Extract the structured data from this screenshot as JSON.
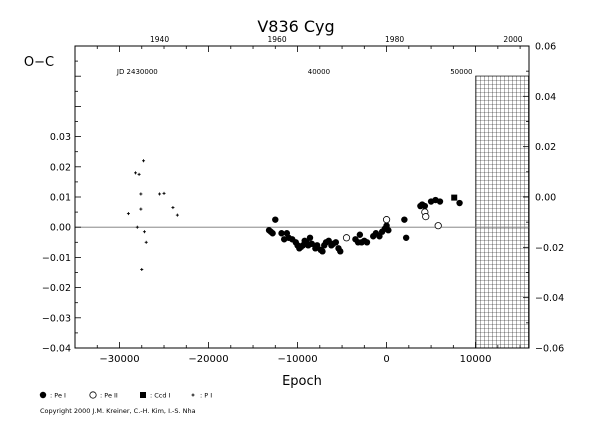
{
  "chart_data": {
    "type": "scatter",
    "title": "V836  Cyg",
    "xlabel": "Epoch",
    "ylabel": "O−C",
    "xlim": [
      -35000,
      16000
    ],
    "ylim": [
      -0.04,
      0.06
    ],
    "x_ticks": [
      -30000,
      -20000,
      -10000,
      0,
      10000
    ],
    "y_ticks_left": [
      -0.04,
      -0.03,
      -0.02,
      -0.01,
      0.0,
      0.01,
      0.02,
      0.03
    ],
    "y_ticks_right": [
      -0.06,
      -0.04,
      -0.02,
      0.0,
      0.02,
      0.04,
      0.06
    ],
    "y_tick_labels_left": [
      "−0.04",
      "−0.03",
      "−0.02",
      "−0.01",
      "0.00",
      "0.01",
      "0.02",
      "0.03"
    ],
    "y_tick_labels_right": [
      "−0.06",
      "−0.04",
      "−0.02",
      "0.00",
      "0.02",
      "0.04",
      "0.06"
    ],
    "top_year_ticks": [
      {
        "label": "1940",
        "epoch": -25500
      },
      {
        "label": "1960",
        "epoch": -12300
      },
      {
        "label": "1980",
        "epoch": 900
      },
      {
        "label": "2000",
        "epoch": 14200
      }
    ],
    "jd_ticks": [
      {
        "label": "JD 2430000",
        "epoch": -28000
      },
      {
        "label": "40000",
        "epoch": -7600
      },
      {
        "label": "50000",
        "epoch": 8400
      }
    ],
    "future_hatch_from": 10000,
    "series": [
      {
        "name": ": Pe I",
        "marker": "filled-circle",
        "points": [
          [
            -13200,
            -0.001
          ],
          [
            -13000,
            -0.0015
          ],
          [
            -12800,
            -0.002
          ],
          [
            -12500,
            0.0025
          ],
          [
            -11800,
            -0.002
          ],
          [
            -11500,
            -0.004
          ],
          [
            -11200,
            -0.002
          ],
          [
            -11000,
            -0.0035
          ],
          [
            -10600,
            -0.004
          ],
          [
            -10200,
            -0.005
          ],
          [
            -10000,
            -0.006
          ],
          [
            -9800,
            -0.007
          ],
          [
            -9600,
            -0.0065
          ],
          [
            -9400,
            -0.006
          ],
          [
            -9200,
            -0.0045
          ],
          [
            -9000,
            -0.005
          ],
          [
            -8800,
            -0.006
          ],
          [
            -8600,
            -0.0035
          ],
          [
            -8400,
            -0.0055
          ],
          [
            -8000,
            -0.007
          ],
          [
            -7800,
            -0.006
          ],
          [
            -7400,
            -0.0075
          ],
          [
            -7200,
            -0.008
          ],
          [
            -7000,
            -0.006
          ],
          [
            -6800,
            -0.005
          ],
          [
            -6500,
            -0.0045
          ],
          [
            -6200,
            -0.006
          ],
          [
            -6000,
            -0.0055
          ],
          [
            -5700,
            -0.005
          ],
          [
            -5400,
            -0.007
          ],
          [
            -5200,
            -0.008
          ],
          [
            -3500,
            -0.004
          ],
          [
            -3200,
            -0.005
          ],
          [
            -3000,
            -0.0025
          ],
          [
            -2800,
            -0.005
          ],
          [
            -2500,
            -0.0045
          ],
          [
            -2200,
            -0.005
          ],
          [
            -1500,
            -0.003
          ],
          [
            -1200,
            -0.002
          ],
          [
            -800,
            -0.003
          ],
          [
            -500,
            -0.0015
          ],
          [
            -200,
            -0.0005
          ],
          [
            0,
            0.0005
          ],
          [
            200,
            -0.001
          ],
          [
            2000,
            0.0025
          ],
          [
            2200,
            -0.0035
          ],
          [
            3800,
            0.007
          ],
          [
            4000,
            0.0075
          ],
          [
            4300,
            0.007
          ],
          [
            5000,
            0.0085
          ],
          [
            5500,
            0.009
          ],
          [
            6000,
            0.0085
          ],
          [
            8200,
            0.008
          ]
        ]
      },
      {
        "name": ": Pe II",
        "marker": "open-circle",
        "points": [
          [
            -4500,
            -0.0035
          ],
          [
            0,
            0.0025
          ],
          [
            4300,
            0.005
          ],
          [
            4400,
            0.0035
          ],
          [
            5800,
            0.0005
          ]
        ]
      },
      {
        "name": ": Ccd I",
        "marker": "filled-square",
        "points": [
          [
            7600,
            0.0098
          ]
        ]
      },
      {
        "name": ": P I",
        "marker": "plus",
        "points": [
          [
            -29000,
            0.0045
          ],
          [
            -28200,
            0.018
          ],
          [
            -28000,
            0.0
          ],
          [
            -27800,
            0.0175
          ],
          [
            -27600,
            0.011
          ],
          [
            -27600,
            0.006
          ],
          [
            -27500,
            -0.014
          ],
          [
            -27300,
            0.022
          ],
          [
            -27200,
            -0.0015
          ],
          [
            -27000,
            -0.005
          ],
          [
            -25500,
            0.011
          ],
          [
            -25000,
            0.0112
          ],
          [
            -24000,
            0.0065
          ],
          [
            -23500,
            0.004
          ]
        ]
      }
    ]
  },
  "copyright": "Copyright 2000 J.M. Kreiner, C.-H. Kim, I.-S. Nha"
}
